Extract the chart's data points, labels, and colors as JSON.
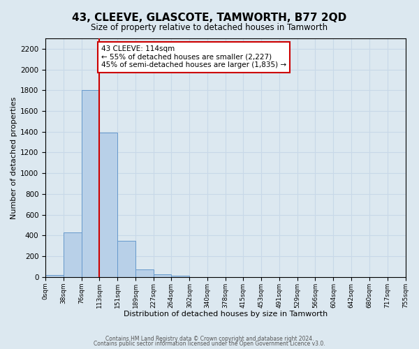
{
  "title": "43, CLEEVE, GLASCOTE, TAMWORTH, B77 2QD",
  "subtitle": "Size of property relative to detached houses in Tamworth",
  "xlabel": "Distribution of detached houses by size in Tamworth",
  "ylabel": "Number of detached properties",
  "bar_edges": [
    0,
    38,
    76,
    113,
    151,
    189,
    227,
    264,
    302,
    340,
    378,
    415,
    453,
    491,
    529,
    566,
    604,
    642,
    680,
    717,
    755
  ],
  "bar_heights": [
    20,
    430,
    1800,
    1390,
    350,
    75,
    25,
    10,
    0,
    0,
    0,
    0,
    0,
    0,
    0,
    0,
    0,
    0,
    0,
    0
  ],
  "bar_color": "#b8d0e8",
  "bar_edge_color": "#6699cc",
  "vline_x": 113,
  "vline_color": "#cc0000",
  "vline_lw": 1.5,
  "ylim": [
    0,
    2300
  ],
  "yticks": [
    0,
    200,
    400,
    600,
    800,
    1000,
    1200,
    1400,
    1600,
    1800,
    2000,
    2200
  ],
  "annotation_title": "43 CLEEVE: 114sqm",
  "annotation_line1": "← 55% of detached houses are smaller (2,227)",
  "annotation_line2": "45% of semi-detached houses are larger (1,835) →",
  "annotation_box_color": "#cc0000",
  "tick_labels": [
    "0sqm",
    "38sqm",
    "76sqm",
    "113sqm",
    "151sqm",
    "189sqm",
    "227sqm",
    "264sqm",
    "302sqm",
    "340sqm",
    "378sqm",
    "415sqm",
    "453sqm",
    "491sqm",
    "529sqm",
    "566sqm",
    "604sqm",
    "642sqm",
    "680sqm",
    "717sqm",
    "755sqm"
  ],
  "grid_color": "#c8d8e8",
  "background_color": "#dce8f0",
  "footer1": "Contains HM Land Registry data © Crown copyright and database right 2024.",
  "footer2": "Contains public sector information licensed under the Open Government Licence v3.0."
}
